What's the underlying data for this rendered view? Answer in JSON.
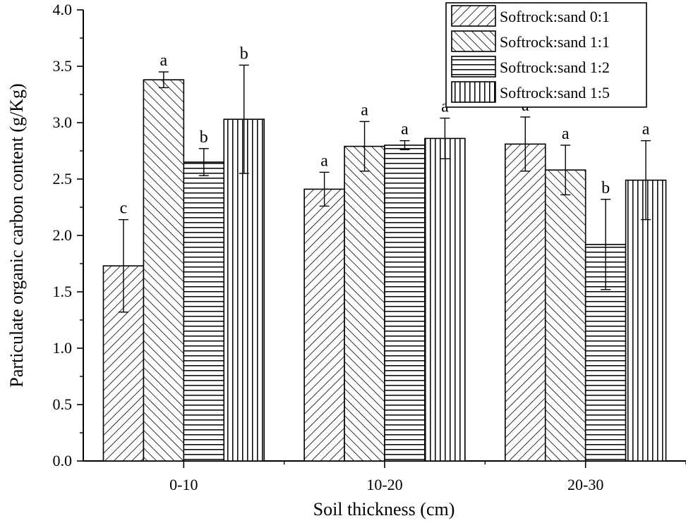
{
  "chart_data": {
    "type": "bar",
    "xlabel": "Soil thickness (cm)",
    "ylabel": "Particulate organic carbon content  (g/Kg)",
    "ylim": [
      0,
      4.0
    ],
    "yticks": [
      "0.0",
      "0.5",
      "1.0",
      "1.5",
      "2.0",
      "2.5",
      "3.0",
      "3.5",
      "4.0"
    ],
    "categories": [
      "0-10",
      "10-20",
      "20-30"
    ],
    "legend_position": "top-right",
    "grid": false,
    "series": [
      {
        "name": "Softrock:sand 0:1",
        "pattern": "diagonal-right",
        "values": [
          1.73,
          2.41,
          2.81
        ],
        "errors": [
          0.41,
          0.15,
          0.24
        ],
        "letters": [
          "c",
          "a",
          "a"
        ]
      },
      {
        "name": "Softrock:sand 1:1",
        "pattern": "diagonal-left",
        "values": [
          3.38,
          2.79,
          2.58
        ],
        "errors": [
          0.07,
          0.22,
          0.22
        ],
        "letters": [
          "a",
          "a",
          "a"
        ]
      },
      {
        "name": "Softrock:sand 1:2",
        "pattern": "horizontal",
        "values": [
          2.65,
          2.8,
          1.92
        ],
        "errors": [
          0.12,
          0.04,
          0.4
        ],
        "letters": [
          "b",
          "a",
          "b"
        ]
      },
      {
        "name": "Softrock:sand 1:5",
        "pattern": "vertical",
        "values": [
          3.03,
          2.86,
          2.49
        ],
        "errors": [
          0.48,
          0.18,
          0.35
        ],
        "letters": [
          "b",
          "a",
          "a"
        ]
      }
    ]
  }
}
